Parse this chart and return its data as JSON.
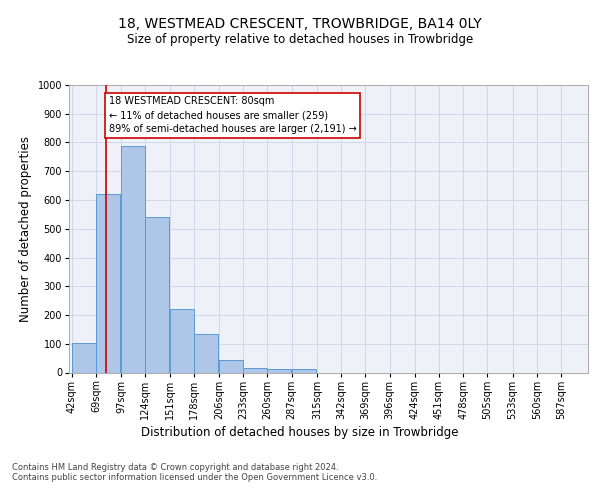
{
  "title1": "18, WESTMEAD CRESCENT, TROWBRIDGE, BA14 0LY",
  "title2": "Size of property relative to detached houses in Trowbridge",
  "xlabel": "Distribution of detached houses by size in Trowbridge",
  "ylabel": "Number of detached properties",
  "bar_values": [
    103,
    622,
    787,
    540,
    222,
    133,
    42,
    17,
    11,
    11,
    0,
    0,
    0,
    0,
    0,
    0,
    0,
    0,
    0
  ],
  "x_labels": [
    "42sqm",
    "69sqm",
    "97sqm",
    "124sqm",
    "151sqm",
    "178sqm",
    "206sqm",
    "233sqm",
    "260sqm",
    "287sqm",
    "315sqm",
    "342sqm",
    "369sqm",
    "396sqm",
    "424sqm",
    "451sqm",
    "478sqm",
    "505sqm",
    "533sqm",
    "560sqm",
    "587sqm"
  ],
  "bin_edges": [
    42,
    69,
    97,
    124,
    151,
    178,
    206,
    233,
    260,
    287,
    315,
    342,
    369,
    396,
    424,
    451,
    478,
    505,
    533,
    560,
    587
  ],
  "bar_color": "#aec6e8",
  "bar_edgecolor": "#5b9bd5",
  "vline_x": 80,
  "vline_color": "#cc0000",
  "annotation_text": "18 WESTMEAD CRESCENT: 80sqm\n← 11% of detached houses are smaller (259)\n89% of semi-detached houses are larger (2,191) →",
  "annotation_box_color": "#ffffff",
  "annotation_box_edgecolor": "#cc0000",
  "ylim": [
    0,
    1000
  ],
  "yticks": [
    0,
    100,
    200,
    300,
    400,
    500,
    600,
    700,
    800,
    900,
    1000
  ],
  "grid_color": "#d0d8e8",
  "background_color": "#eef2f8",
  "footer1": "Contains HM Land Registry data © Crown copyright and database right 2024.",
  "footer2": "Contains public sector information licensed under the Open Government Licence v3.0.",
  "title1_fontsize": 10,
  "title2_fontsize": 8.5,
  "xlabel_fontsize": 8.5,
  "ylabel_fontsize": 8.5,
  "tick_fontsize": 7,
  "annotation_fontsize": 7
}
